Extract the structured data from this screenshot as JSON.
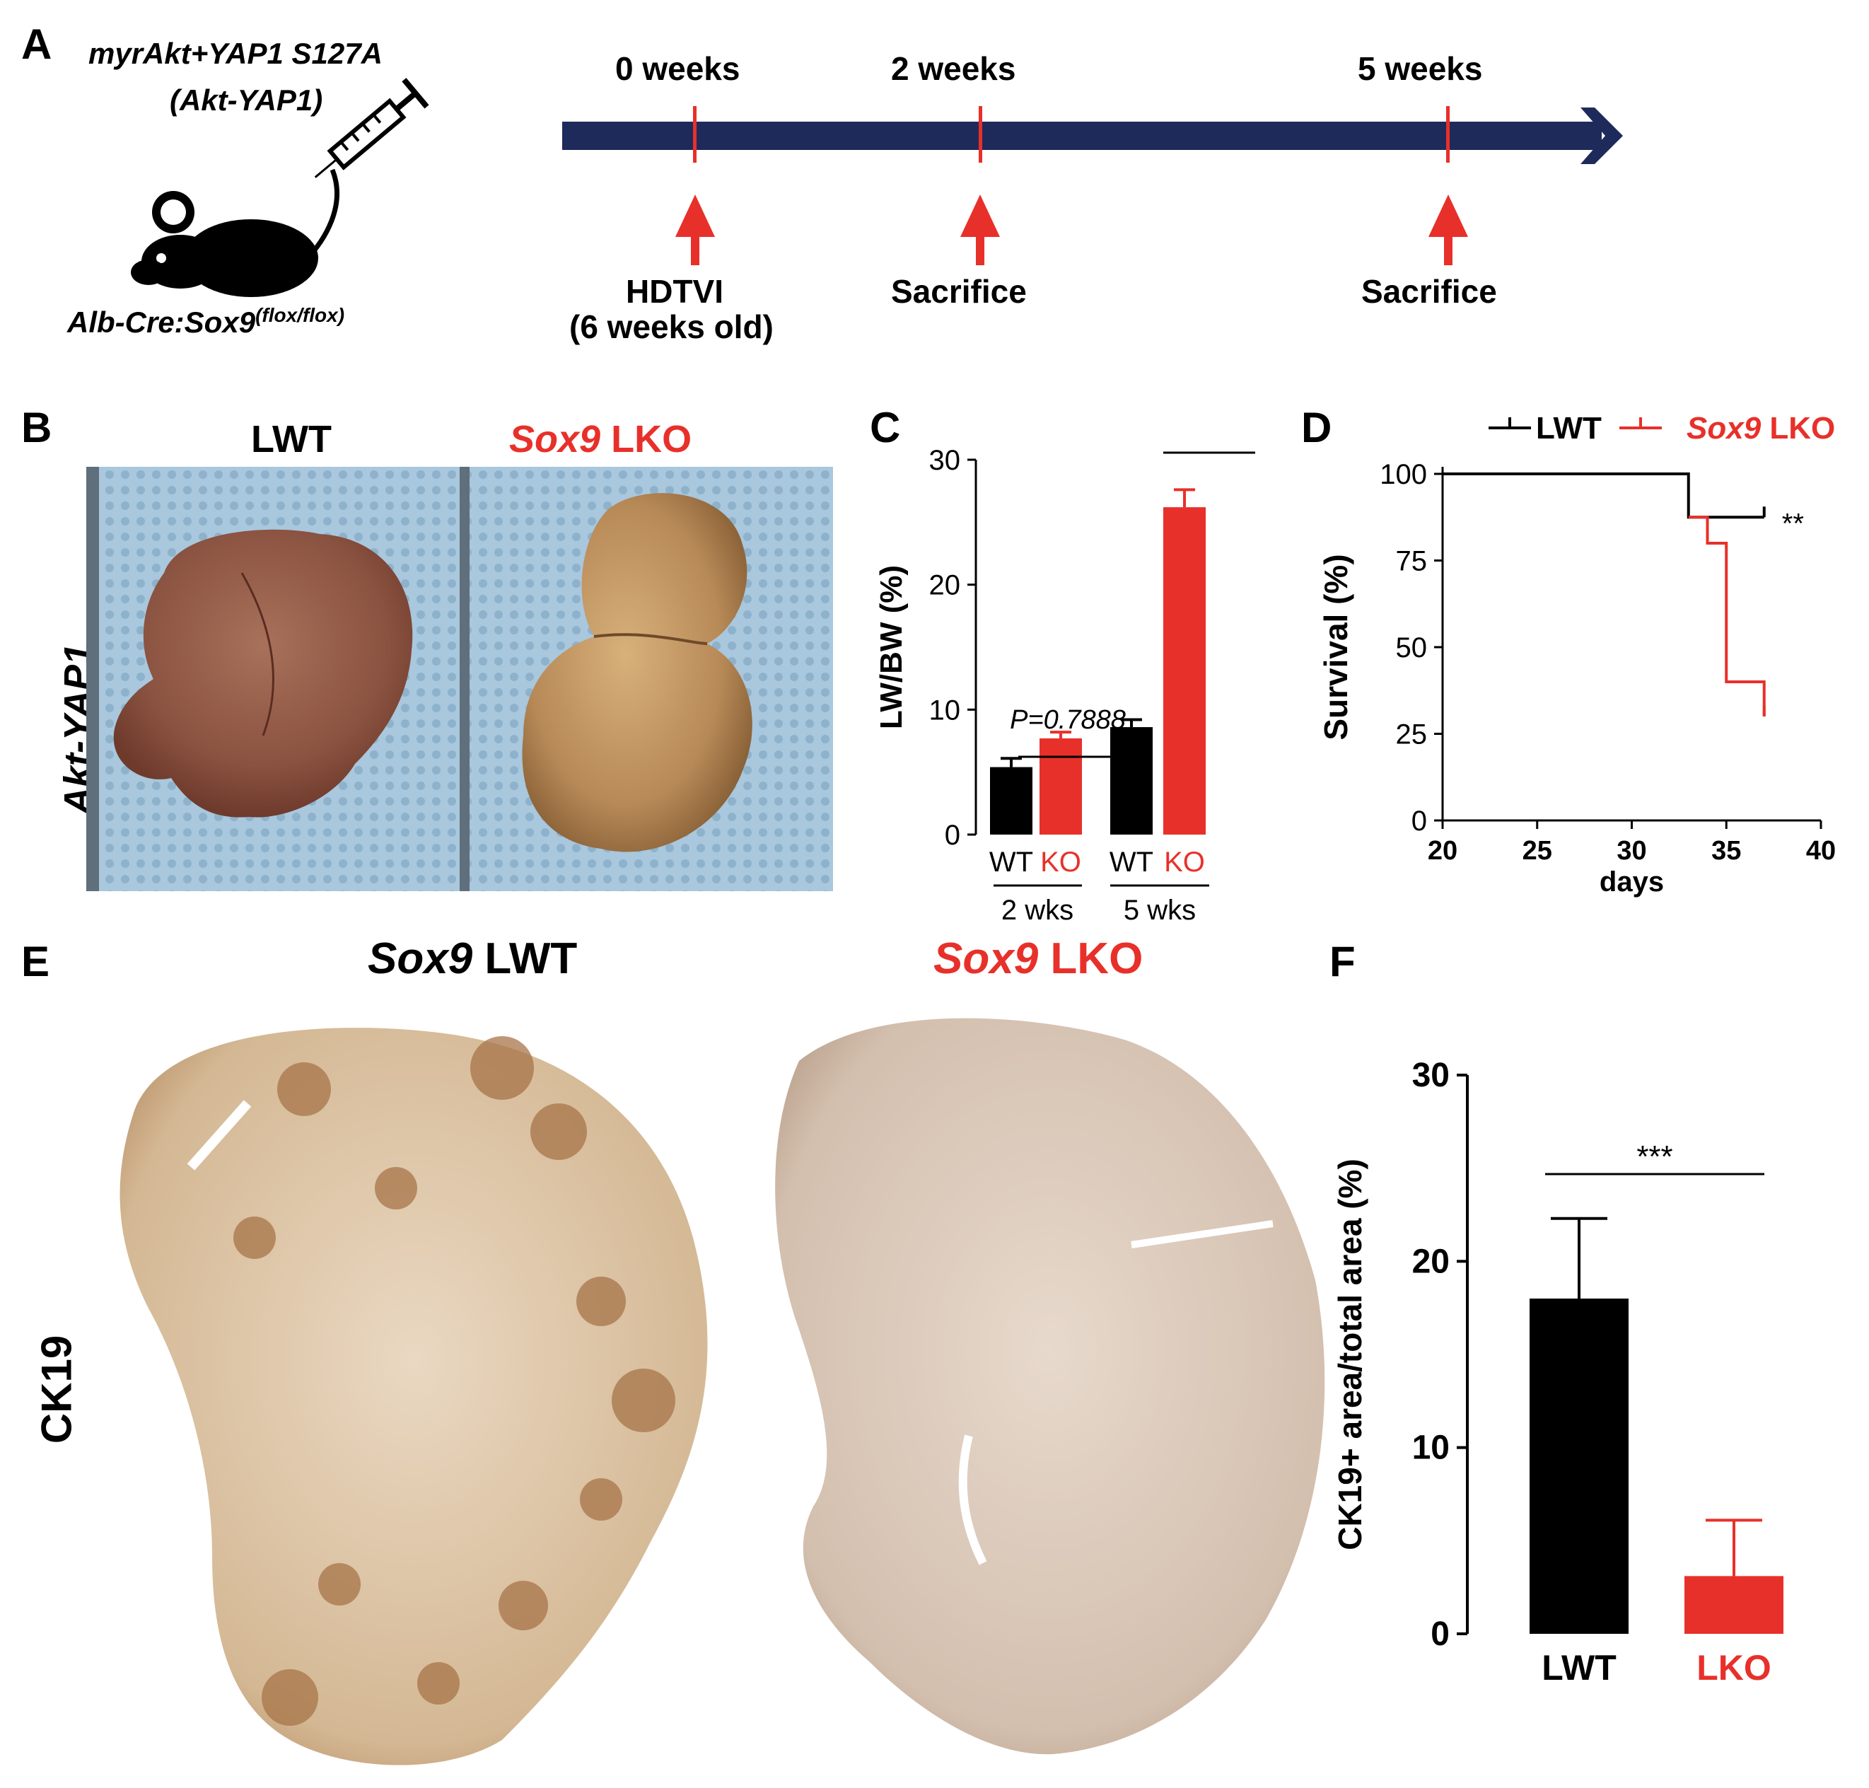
{
  "panels": {
    "A": "A",
    "B": "B",
    "C": "C",
    "D": "D",
    "E": "E",
    "F": "F"
  },
  "panel_a": {
    "construct_line1": "myrAkt+YAP1 S127A",
    "construct_line2": "(Akt-YAP1)",
    "mouse_label_main": "Alb-Cre:Sox9",
    "mouse_label_sup": "(flox/flox)",
    "timeline": [
      {
        "time": "0 weeks",
        "event_line1": "HDTVI",
        "event_line2": "(6 weeks old)"
      },
      {
        "time": "2 weeks",
        "event_line1": "Sacrifice",
        "event_line2": ""
      },
      {
        "time": "5 weeks",
        "event_line1": "Sacrifice",
        "event_line2": ""
      }
    ],
    "colors": {
      "arrow": "#1e2a5a",
      "marker": "#e8302a"
    }
  },
  "panel_b": {
    "left_title": "LWT",
    "right_title_gene": "Sox9",
    "right_title_rest": " LKO",
    "row_label": "Akt-YAP1"
  },
  "panel_e": {
    "left_title_gene": "Sox9",
    "left_title_rest": " LWT",
    "right_title_gene": "Sox9",
    "right_title_rest": " LKO",
    "row_label": "CK19"
  },
  "chart_data": [
    {
      "panel": "C",
      "type": "bar",
      "ylabel": "LW/BW (%)",
      "ylim": [
        0,
        30
      ],
      "yticks": [
        "0",
        "10",
        "20",
        "30"
      ],
      "categories": [
        "WT",
        "KO",
        "WT",
        "KO"
      ],
      "groups": [
        "2 wks",
        "5 wks"
      ],
      "values": [
        5.4,
        7.7,
        8.6,
        26.2
      ],
      "errors": [
        0.7,
        0.5,
        0.6,
        1.4
      ],
      "bar_colors": [
        "#000000",
        "#e8302a",
        "#000000",
        "#e8302a"
      ],
      "annotations": [
        {
          "text": "P=0.7888",
          "between": [
            0,
            1
          ]
        },
        {
          "text": "****",
          "between": [
            2,
            3
          ]
        }
      ]
    },
    {
      "panel": "D",
      "type": "line",
      "xlabel": "days",
      "ylabel": "Survival (%)",
      "xlim": [
        20,
        40
      ],
      "ylim": [
        0,
        100
      ],
      "xticks": [
        "20",
        "25",
        "30",
        "35",
        "40"
      ],
      "yticks": [
        "0",
        "25",
        "50",
        "75",
        "100"
      ],
      "series": [
        {
          "name": "LWT",
          "color": "#000000",
          "x": [
            20,
            33,
            33,
            37
          ],
          "y": [
            100,
            100,
            87.5,
            87.5
          ]
        },
        {
          "name_gene": "Sox9",
          "name_rest": " LKO",
          "color": "#e8302a",
          "x": [
            33,
            34,
            34,
            35,
            35,
            37,
            37
          ],
          "y": [
            87.5,
            87.5,
            80,
            80,
            40,
            40,
            30
          ]
        }
      ],
      "annotation": "**"
    },
    {
      "panel": "F",
      "type": "bar",
      "ylabel": "CK19+ area/total area (%)",
      "ylim": [
        0,
        30
      ],
      "yticks": [
        "0",
        "10",
        "20",
        "30"
      ],
      "categories": [
        "LWT",
        "LKO"
      ],
      "values": [
        18.0,
        3.1
      ],
      "errors": [
        4.3,
        3.0
      ],
      "bar_colors": [
        "#000000",
        "#e8302a"
      ],
      "annotation": "***"
    }
  ]
}
